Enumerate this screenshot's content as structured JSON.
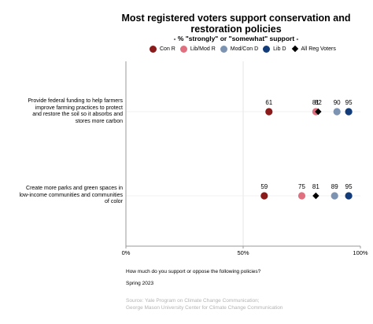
{
  "chart_data": {
    "type": "scatter",
    "title_lines": [
      "Most registered voters support conservation and",
      "restoration policies"
    ],
    "subtitle": "- % \"strongly\" or \"somewhat\" support -",
    "categories": [
      "Provide federal funding to help farmers improve farming practices to protect and restore the soil so it absorbs and stores more carbon",
      "Create more parks and green spaces in low-income communities and communities of color"
    ],
    "category_lines": [
      [
        "Provide federal funding to help farmers",
        "improve farming practices to protect",
        "and restore the soil so it absorbs and",
        "stores more carbon"
      ],
      [
        "Create more parks and green spaces in",
        "low-income communities and communities",
        "of color"
      ]
    ],
    "series": [
      {
        "name": "Con R",
        "color": "#8b1a1a",
        "marker": "circle",
        "values": [
          61,
          59
        ]
      },
      {
        "name": "Lib/Mod R",
        "color": "#e0707f",
        "marker": "circle",
        "values": [
          81,
          75
        ]
      },
      {
        "name": "Mod/Con D",
        "color": "#7d93b2",
        "marker": "circle",
        "values": [
          90,
          89
        ]
      },
      {
        "name": "Lib D",
        "color": "#123b7a",
        "marker": "circle",
        "values": [
          95,
          95
        ]
      },
      {
        "name": "All Reg Voters",
        "color": "#000000",
        "marker": "diamond",
        "values": [
          82,
          81
        ]
      }
    ],
    "xlim": [
      0,
      100
    ],
    "xticks": [
      "0%",
      "50%",
      "100%"
    ],
    "xtick_values": [
      0,
      50,
      100
    ],
    "xlabel": "How much do you support or oppose the following policies?",
    "grid": "vertical at 50%",
    "legend": "top"
  },
  "footer": {
    "question": "How much do you support or oppose the following policies?",
    "date": "Spring 2023",
    "source_line1": "Source: Yale Program on Climate Change Communication;",
    "source_line2": "George Mason University Center for Climate Change Communication"
  }
}
